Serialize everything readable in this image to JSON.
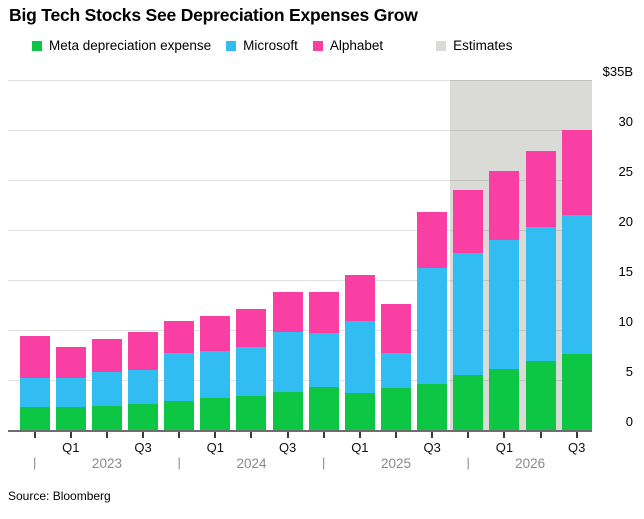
{
  "title": "Big Tech Stocks See Depreciation Expenses Grow",
  "source": "Source: Bloomberg",
  "legend": [
    {
      "id": "meta",
      "label": "Meta depreciation expense",
      "color": "#0cc644"
    },
    {
      "id": "microsoft",
      "label": "Microsoft",
      "color": "#32bdf2"
    },
    {
      "id": "alphabet",
      "label": "Alphabet",
      "color": "#f93ea4"
    },
    {
      "id": "estimates",
      "label": "Estimates",
      "color": "#dadad7"
    }
  ],
  "chart_data": {
    "type": "bar",
    "stacked": true,
    "title": "Big Tech Stocks See Depreciation Expenses Grow",
    "unit": "USD billions",
    "categories": [
      "Q4 2022",
      "Q1 2023",
      "Q2 2023",
      "Q3 2023",
      "Q4 2023",
      "Q1 2024",
      "Q2 2024",
      "Q3 2024",
      "Q4 2024",
      "Q1 2025",
      "Q2 2025",
      "Q3 2025",
      "Q4 2025",
      "Q1 2026",
      "Q2 2026",
      "Q3 2026"
    ],
    "series": [
      {
        "name": "Meta depreciation expense",
        "color": "#0cc644",
        "values": [
          2.3,
          2.3,
          2.4,
          2.6,
          2.9,
          3.2,
          3.4,
          3.8,
          4.3,
          3.7,
          4.2,
          4.6,
          5.5,
          6.1,
          6.9,
          7.6
        ]
      },
      {
        "name": "Microsoft",
        "color": "#32bdf2",
        "values": [
          2.9,
          2.9,
          3.4,
          3.4,
          4.8,
          4.7,
          4.9,
          6.0,
          5.4,
          7.2,
          3.5,
          11.6,
          12.2,
          12.9,
          13.4,
          13.9
        ]
      },
      {
        "name": "Alphabet",
        "color": "#f93ea4",
        "values": [
          4.2,
          3.1,
          3.3,
          3.8,
          3.2,
          3.5,
          3.8,
          4.0,
          4.1,
          4.6,
          4.9,
          5.6,
          6.3,
          6.9,
          7.6,
          8.5
        ]
      }
    ],
    "estimates": {
      "label": "Estimates",
      "color": "#dadad7",
      "from_category": "Q4 2025",
      "from_index": 12
    },
    "y_axis": {
      "position": "right",
      "ylim": [
        0,
        35
      ],
      "ticks": [
        0,
        5,
        10,
        15,
        20,
        25,
        30,
        35
      ],
      "top_label": "$35B"
    },
    "x_axis": {
      "quarter_tick_labels": [
        "Q1",
        "Q3"
      ],
      "years": [
        "2023",
        "2024",
        "2025",
        "2026"
      ]
    },
    "grid": true,
    "legend_position": "top"
  }
}
